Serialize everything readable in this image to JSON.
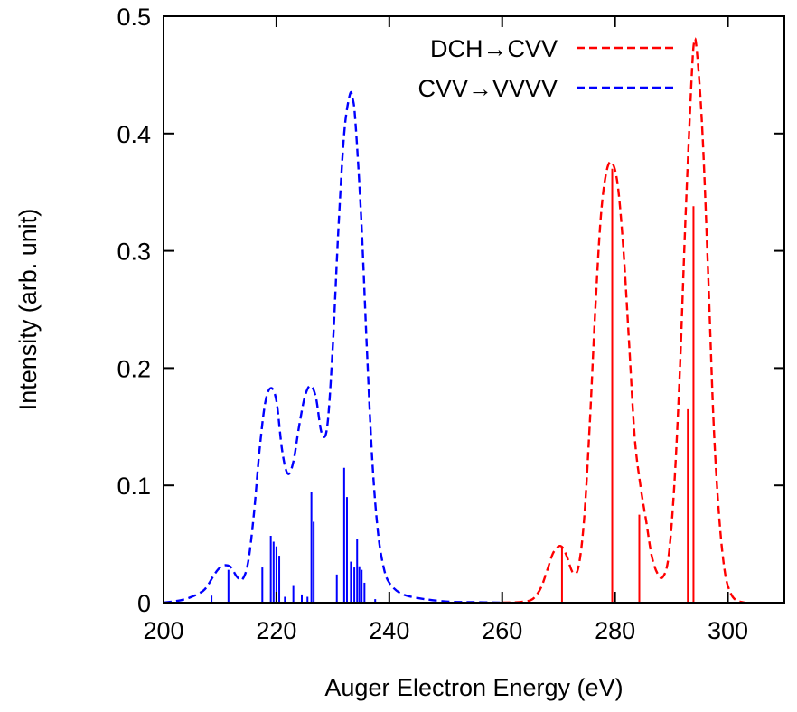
{
  "chart_data": {
    "type": "line",
    "xlabel": "Auger Electron Energy (eV)",
    "ylabel": "Intensity (arb. unit)",
    "xlim": [
      200,
      310
    ],
    "ylim": [
      0,
      0.5
    ],
    "xticks": [
      200,
      220,
      240,
      260,
      280,
      300
    ],
    "yticks": [
      0,
      0.1,
      0.2,
      0.3,
      0.4,
      0.5
    ],
    "xtick_labels": [
      "200",
      "220",
      "240",
      "260",
      "280",
      "300"
    ],
    "ytick_labels": [
      "0",
      "0.1",
      "0.2",
      "0.3",
      "0.4",
      "0.5"
    ],
    "grid": false,
    "legend_position": "top-right",
    "series": [
      {
        "name": "DCH→CVV",
        "color": "#ff0000",
        "style": "dashed",
        "x": [
          260,
          263,
          265,
          266,
          267,
          268,
          269,
          270,
          270.7,
          271.5,
          272.5,
          273.5,
          274.5,
          275.5,
          276.5,
          277.5,
          278.5,
          279.5,
          280.5,
          281.5,
          282.5,
          283.5,
          284.5,
          285.5,
          286.5,
          287.5,
          288.5,
          289.5,
          290.5,
          291.5,
          292.5,
          293.5,
          294,
          294.5,
          295.5,
          296.5,
          297.5,
          298.5,
          299.5,
          300.5,
          301.5,
          303
        ],
        "y": [
          0,
          0.0005,
          0.002,
          0.006,
          0.014,
          0.028,
          0.042,
          0.048,
          0.047,
          0.039,
          0.026,
          0.03,
          0.07,
          0.15,
          0.25,
          0.33,
          0.368,
          0.375,
          0.355,
          0.3,
          0.22,
          0.14,
          0.1,
          0.07,
          0.04,
          0.025,
          0.022,
          0.04,
          0.1,
          0.2,
          0.33,
          0.44,
          0.478,
          0.47,
          0.4,
          0.28,
          0.15,
          0.07,
          0.025,
          0.008,
          0.002,
          0
        ]
      },
      {
        "name": "CVV→VVVV",
        "color": "#0000ff",
        "style": "dashed",
        "x": [
          200,
          203,
          205,
          207,
          208,
          209,
          210,
          211,
          212,
          213,
          214,
          215,
          216,
          217,
          218,
          219,
          220,
          221,
          222,
          223,
          224,
          225,
          226,
          227,
          228,
          229,
          230,
          231,
          232,
          233,
          233.5,
          234,
          235,
          236,
          237,
          238,
          239,
          240,
          242,
          245,
          250,
          255,
          260
        ],
        "y": [
          0,
          0.002,
          0.005,
          0.01,
          0.016,
          0.024,
          0.03,
          0.032,
          0.03,
          0.022,
          0.02,
          0.035,
          0.075,
          0.13,
          0.17,
          0.183,
          0.172,
          0.13,
          0.11,
          0.12,
          0.15,
          0.175,
          0.185,
          0.175,
          0.145,
          0.15,
          0.22,
          0.32,
          0.4,
          0.433,
          0.43,
          0.41,
          0.33,
          0.22,
          0.12,
          0.06,
          0.03,
          0.017,
          0.008,
          0.004,
          0.001,
          0.0004,
          0
        ]
      }
    ],
    "sticks": [
      {
        "series": "DCH→CVV",
        "color": "#ff0000",
        "x": [
          270.6,
          279.5,
          284.3,
          292.9,
          293.9
        ],
        "y": [
          0.048,
          0.37,
          0.075,
          0.165,
          0.338
        ]
      },
      {
        "series": "CVV→VVVV",
        "color": "#0000ff",
        "x": [
          208.5,
          211.5,
          217.5,
          219.0,
          219.5,
          220.0,
          220.5,
          221.5,
          223.0,
          224.5,
          225.5,
          226.2,
          226.6,
          230.7,
          232.0,
          232.5,
          233.2,
          233.8,
          234.3,
          234.7,
          235.1,
          235.6,
          237.5
        ],
        "y": [
          0.006,
          0.028,
          0.03,
          0.057,
          0.052,
          0.048,
          0.04,
          0.005,
          0.015,
          0.007,
          0.005,
          0.094,
          0.069,
          0.024,
          0.115,
          0.09,
          0.035,
          0.03,
          0.054,
          0.031,
          0.028,
          0.017,
          0.003
        ]
      }
    ]
  }
}
